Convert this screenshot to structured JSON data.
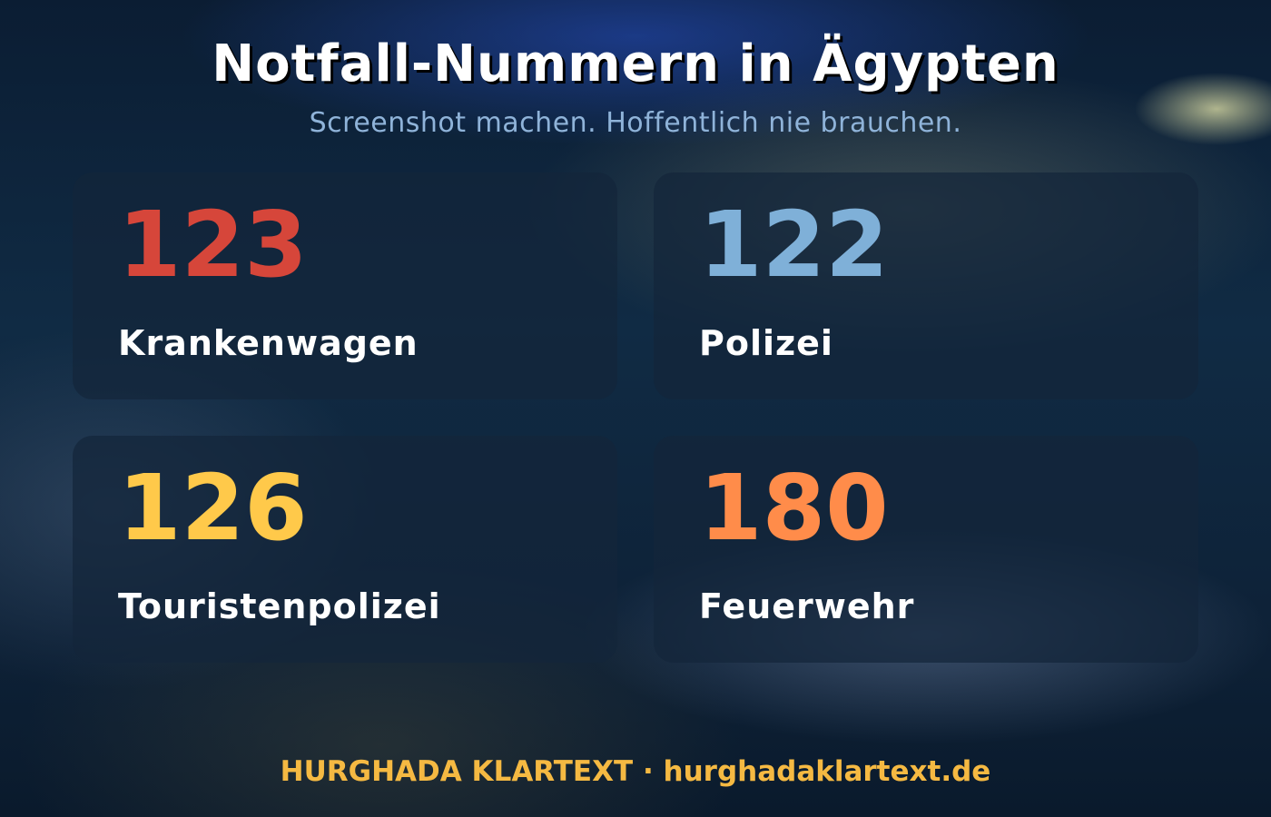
{
  "header": {
    "title": "Notfall-Nummern in Ägypten",
    "subtitle": "Screenshot machen. Hoffentlich nie brauchen."
  },
  "cards": [
    {
      "number": "123",
      "label": "Krankenwagen"
    },
    {
      "number": "122",
      "label": "Polizei"
    },
    {
      "number": "126",
      "label": "Touristenpolizei"
    },
    {
      "number": "180",
      "label": "Feuerwehr"
    }
  ],
  "footer": "HURGHADA KLARTEXT · hurghadaklartext.de"
}
